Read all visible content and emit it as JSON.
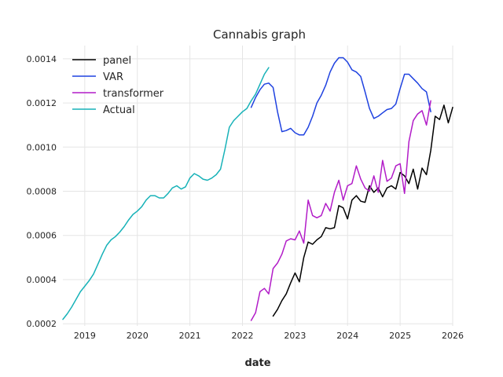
{
  "chart_data": {
    "type": "line",
    "title": "Cannabis graph",
    "xlabel": "date",
    "ylabel": "",
    "xlim": [
      "2018-08",
      "2026-01"
    ],
    "ylim": [
      0.00019,
      0.00146
    ],
    "grid": true,
    "legend_position": "top-left",
    "x_ticks": [
      "2019",
      "2020",
      "2021",
      "2022",
      "2023",
      "2024",
      "2025",
      "2026"
    ],
    "y_ticks": [
      "0.0002",
      "0.0004",
      "0.0006",
      "0.0008",
      "0.0010",
      "0.0012",
      "0.0014"
    ],
    "series": [
      {
        "name": "panel",
        "color": "#000000",
        "x": [
          "2022-08",
          "2022-09",
          "2022-10",
          "2022-11",
          "2022-12",
          "2023-01",
          "2023-02",
          "2023-03",
          "2023-04",
          "2023-05",
          "2023-06",
          "2023-07",
          "2023-08",
          "2023-09",
          "2023-10",
          "2023-11",
          "2023-12",
          "2024-01",
          "2024-02",
          "2024-03",
          "2024-04",
          "2024-05",
          "2024-06",
          "2024-07",
          "2024-08",
          "2024-09",
          "2024-10",
          "2024-11",
          "2024-12",
          "2025-01",
          "2025-02",
          "2025-03",
          "2025-04",
          "2025-05",
          "2025-06",
          "2025-07",
          "2025-08",
          "2025-09",
          "2025-10",
          "2025-11",
          "2025-12",
          "2026-01"
        ],
        "values": [
          0.000235,
          0.000265,
          0.000305,
          0.000335,
          0.000385,
          0.00043,
          0.00039,
          0.0005,
          0.00057,
          0.00056,
          0.00058,
          0.000595,
          0.000635,
          0.00063,
          0.000635,
          0.000735,
          0.000725,
          0.000675,
          0.00076,
          0.00078,
          0.000755,
          0.00075,
          0.000825,
          0.000795,
          0.000815,
          0.000775,
          0.000815,
          0.000825,
          0.00081,
          0.000885,
          0.00087,
          0.000835,
          0.0009,
          0.00081,
          0.000905,
          0.000875,
          0.000985,
          0.00114,
          0.001125,
          0.00119,
          0.00111,
          0.00118
        ]
      },
      {
        "name": "VAR",
        "color": "#1f42e0",
        "x": [
          "2022-03",
          "2022-04",
          "2022-05",
          "2022-06",
          "2022-07",
          "2022-08",
          "2022-09",
          "2022-10",
          "2022-11",
          "2022-12",
          "2023-01",
          "2023-02",
          "2023-03",
          "2023-04",
          "2023-05",
          "2023-06",
          "2023-07",
          "2023-08",
          "2023-09",
          "2023-10",
          "2023-11",
          "2023-12",
          "2024-01",
          "2024-02",
          "2024-03",
          "2024-04",
          "2024-05",
          "2024-06",
          "2024-07",
          "2024-08",
          "2024-09",
          "2024-10",
          "2024-11",
          "2024-12",
          "2025-01",
          "2025-02",
          "2025-03",
          "2025-04",
          "2025-05",
          "2025-06",
          "2025-07",
          "2025-08"
        ],
        "values": [
          0.00118,
          0.001225,
          0.00126,
          0.001285,
          0.00129,
          0.00127,
          0.00116,
          0.00107,
          0.001075,
          0.001085,
          0.001065,
          0.001055,
          0.001055,
          0.00109,
          0.00114,
          0.0012,
          0.001235,
          0.00128,
          0.00134,
          0.00138,
          0.001405,
          0.001405,
          0.001385,
          0.00135,
          0.00134,
          0.00132,
          0.00125,
          0.001175,
          0.00113,
          0.00114,
          0.001155,
          0.00117,
          0.001175,
          0.001195,
          0.001265,
          0.00133,
          0.00133,
          0.00131,
          0.00129,
          0.001265,
          0.00125,
          0.00116
        ]
      },
      {
        "name": "transformer",
        "color": "#b21cc8",
        "x": [
          "2022-03",
          "2022-04",
          "2022-05",
          "2022-06",
          "2022-07",
          "2022-08",
          "2022-09",
          "2022-10",
          "2022-11",
          "2022-12",
          "2023-01",
          "2023-02",
          "2023-03",
          "2023-04",
          "2023-05",
          "2023-06",
          "2023-07",
          "2023-08",
          "2023-09",
          "2023-10",
          "2023-11",
          "2023-12",
          "2024-01",
          "2024-02",
          "2024-03",
          "2024-04",
          "2024-05",
          "2024-06",
          "2024-07",
          "2024-08",
          "2024-09",
          "2024-10",
          "2024-11",
          "2024-12",
          "2025-01",
          "2025-02",
          "2025-03",
          "2025-04",
          "2025-05",
          "2025-06",
          "2025-07",
          "2025-08"
        ],
        "values": [
          0.000215,
          0.00025,
          0.000345,
          0.00036,
          0.000335,
          0.00045,
          0.000475,
          0.000515,
          0.000575,
          0.000585,
          0.00058,
          0.00062,
          0.000565,
          0.00076,
          0.00069,
          0.00068,
          0.00069,
          0.000745,
          0.00071,
          0.000795,
          0.00085,
          0.00076,
          0.000825,
          0.000835,
          0.000915,
          0.000855,
          0.000815,
          0.0008,
          0.00087,
          0.000795,
          0.00094,
          0.000845,
          0.00086,
          0.000915,
          0.000925,
          0.00079,
          0.001025,
          0.00112,
          0.00115,
          0.001165,
          0.0011,
          0.00121
        ]
      },
      {
        "name": "Actual",
        "color": "#17b2b8",
        "x": [
          "2018-08",
          "2018-09",
          "2018-10",
          "2018-11",
          "2018-12",
          "2019-01",
          "2019-02",
          "2019-03",
          "2019-04",
          "2019-05",
          "2019-06",
          "2019-07",
          "2019-08",
          "2019-09",
          "2019-10",
          "2019-11",
          "2019-12",
          "2020-01",
          "2020-02",
          "2020-03",
          "2020-04",
          "2020-05",
          "2020-06",
          "2020-07",
          "2020-08",
          "2020-09",
          "2020-10",
          "2020-11",
          "2020-12",
          "2021-01",
          "2021-02",
          "2021-03",
          "2021-04",
          "2021-05",
          "2021-06",
          "2021-07",
          "2021-08",
          "2021-09",
          "2021-10",
          "2021-11",
          "2021-12",
          "2022-01",
          "2022-02",
          "2022-03",
          "2022-04",
          "2022-05",
          "2022-06",
          "2022-07"
        ],
        "values": [
          0.00022,
          0.000245,
          0.000275,
          0.00031,
          0.000345,
          0.00037,
          0.000395,
          0.000425,
          0.00047,
          0.000515,
          0.000555,
          0.00058,
          0.000595,
          0.000615,
          0.00064,
          0.00067,
          0.000695,
          0.00071,
          0.00073,
          0.00076,
          0.00078,
          0.00078,
          0.00077,
          0.00077,
          0.00079,
          0.000815,
          0.000825,
          0.00081,
          0.00082,
          0.00086,
          0.00088,
          0.00087,
          0.000855,
          0.00085,
          0.00086,
          0.000875,
          0.0009,
          0.00099,
          0.00109,
          0.00112,
          0.00114,
          0.00116,
          0.001175,
          0.00121,
          0.00124,
          0.001285,
          0.00133,
          0.00136
        ]
      }
    ]
  }
}
